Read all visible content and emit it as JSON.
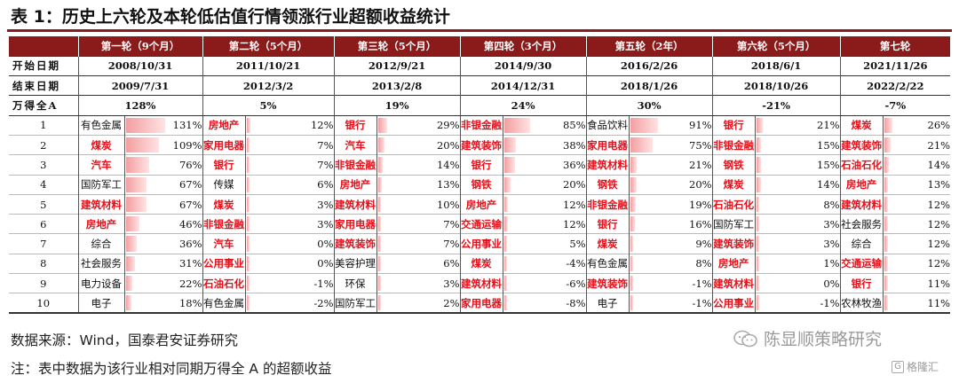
{
  "title": "表 1：历史上六轮及本轮低估值行情领涨行业超额收益统计",
  "columns": [
    "第一轮（9个月）",
    "第二轮（5个月）",
    "第三轮（5个月）",
    "第四轮（3个月）",
    "第五轮（2年）",
    "第六轮（5个月）",
    "第七轮"
  ],
  "start_label": "开始日期",
  "start_dates": [
    "2008/10/31",
    "2011/10/21",
    "2012/9/21",
    "2014/9/30",
    "2016/2/26",
    "2018/6/1",
    "2021/11/26"
  ],
  "end_label": "结束日期",
  "end_dates": [
    "2009/7/31",
    "2012/3/2",
    "2013/2/8",
    "2014/12/31",
    "2018/1/26",
    "2018/10/26",
    "2022/2/22"
  ],
  "wind_label": "万得全A",
  "wind_values": [
    "128%",
    "5%",
    "19%",
    "24%",
    "30%",
    "-21%",
    "-7%"
  ],
  "rows": [
    {
      "rank": "1",
      "cells": [
        {
          "name": "有色金属",
          "value": "131%",
          "pct": 131,
          "hl": false
        },
        {
          "name": "房地产",
          "value": "12%",
          "pct": 12,
          "hl": true
        },
        {
          "name": "银行",
          "value": "29%",
          "pct": 29,
          "hl": true
        },
        {
          "name": "非银金融",
          "value": "85%",
          "pct": 85,
          "hl": true
        },
        {
          "name": "食品饮料",
          "value": "91%",
          "pct": 91,
          "hl": false
        },
        {
          "name": "银行",
          "value": "21%",
          "pct": 21,
          "hl": true
        },
        {
          "name": "煤炭",
          "value": "26%",
          "pct": 26,
          "hl": true
        }
      ]
    },
    {
      "rank": "2",
      "cells": [
        {
          "name": "煤炭",
          "value": "109%",
          "pct": 109,
          "hl": true
        },
        {
          "name": "家用电器",
          "value": "7%",
          "pct": 7,
          "hl": true
        },
        {
          "name": "汽车",
          "value": "20%",
          "pct": 20,
          "hl": true
        },
        {
          "name": "建筑装饰",
          "value": "38%",
          "pct": 38,
          "hl": true
        },
        {
          "name": "家用电器",
          "value": "75%",
          "pct": 75,
          "hl": true
        },
        {
          "name": "非银金融",
          "value": "15%",
          "pct": 15,
          "hl": true
        },
        {
          "name": "建筑装饰",
          "value": "21%",
          "pct": 21,
          "hl": true
        }
      ]
    },
    {
      "rank": "3",
      "cells": [
        {
          "name": "汽车",
          "value": "76%",
          "pct": 76,
          "hl": true
        },
        {
          "name": "银行",
          "value": "7%",
          "pct": 7,
          "hl": true
        },
        {
          "name": "非银金融",
          "value": "14%",
          "pct": 14,
          "hl": true
        },
        {
          "name": "银行",
          "value": "36%",
          "pct": 36,
          "hl": true
        },
        {
          "name": "建筑材料",
          "value": "21%",
          "pct": 21,
          "hl": true
        },
        {
          "name": "钢铁",
          "value": "15%",
          "pct": 15,
          "hl": true
        },
        {
          "name": "石油石化",
          "value": "14%",
          "pct": 14,
          "hl": true
        }
      ]
    },
    {
      "rank": "4",
      "cells": [
        {
          "name": "国防军工",
          "value": "67%",
          "pct": 67,
          "hl": false
        },
        {
          "name": "传媒",
          "value": "6%",
          "pct": 6,
          "hl": false
        },
        {
          "name": "房地产",
          "value": "13%",
          "pct": 13,
          "hl": true
        },
        {
          "name": "钢铁",
          "value": "20%",
          "pct": 20,
          "hl": true
        },
        {
          "name": "钢铁",
          "value": "20%",
          "pct": 20,
          "hl": true
        },
        {
          "name": "煤炭",
          "value": "14%",
          "pct": 14,
          "hl": true
        },
        {
          "name": "房地产",
          "value": "13%",
          "pct": 13,
          "hl": true
        }
      ]
    },
    {
      "rank": "5",
      "cells": [
        {
          "name": "建筑材料",
          "value": "67%",
          "pct": 67,
          "hl": true
        },
        {
          "name": "煤炭",
          "value": "3%",
          "pct": 3,
          "hl": true
        },
        {
          "name": "建筑材料",
          "value": "10%",
          "pct": 10,
          "hl": true
        },
        {
          "name": "房地产",
          "value": "12%",
          "pct": 12,
          "hl": true
        },
        {
          "name": "非银金融",
          "value": "19%",
          "pct": 19,
          "hl": true
        },
        {
          "name": "石油石化",
          "value": "8%",
          "pct": 8,
          "hl": true
        },
        {
          "name": "建筑材料",
          "value": "12%",
          "pct": 12,
          "hl": true
        }
      ]
    },
    {
      "rank": "6",
      "cells": [
        {
          "name": "房地产",
          "value": "46%",
          "pct": 46,
          "hl": true
        },
        {
          "name": "非银金融",
          "value": "3%",
          "pct": 3,
          "hl": true
        },
        {
          "name": "家用电器",
          "value": "7%",
          "pct": 7,
          "hl": true
        },
        {
          "name": "交通运输",
          "value": "12%",
          "pct": 12,
          "hl": true
        },
        {
          "name": "银行",
          "value": "16%",
          "pct": 16,
          "hl": true
        },
        {
          "name": "国防军工",
          "value": "3%",
          "pct": 3,
          "hl": false
        },
        {
          "name": "社会服务",
          "value": "12%",
          "pct": 12,
          "hl": false
        }
      ]
    },
    {
      "rank": "7",
      "cells": [
        {
          "name": "综合",
          "value": "36%",
          "pct": 36,
          "hl": false
        },
        {
          "name": "汽车",
          "value": "0%",
          "pct": 0,
          "hl": true
        },
        {
          "name": "建筑装饰",
          "value": "7%",
          "pct": 7,
          "hl": true
        },
        {
          "name": "公用事业",
          "value": "5%",
          "pct": 5,
          "hl": true
        },
        {
          "name": "煤炭",
          "value": "9%",
          "pct": 9,
          "hl": true
        },
        {
          "name": "建筑装饰",
          "value": "3%",
          "pct": 3,
          "hl": true
        },
        {
          "name": "综合",
          "value": "12%",
          "pct": 12,
          "hl": false
        }
      ]
    },
    {
      "rank": "8",
      "cells": [
        {
          "name": "社会服务",
          "value": "31%",
          "pct": 31,
          "hl": false
        },
        {
          "name": "公用事业",
          "value": "0%",
          "pct": 0,
          "hl": true
        },
        {
          "name": "美容护理",
          "value": "6%",
          "pct": 6,
          "hl": false
        },
        {
          "name": "煤炭",
          "value": "-4%",
          "pct": 0,
          "hl": true
        },
        {
          "name": "有色金属",
          "value": "8%",
          "pct": 8,
          "hl": false
        },
        {
          "name": "房地产",
          "value": "1%",
          "pct": 1,
          "hl": true
        },
        {
          "name": "交通运输",
          "value": "12%",
          "pct": 12,
          "hl": true
        }
      ]
    },
    {
      "rank": "9",
      "cells": [
        {
          "name": "电力设备",
          "value": "22%",
          "pct": 22,
          "hl": false
        },
        {
          "name": "石油石化",
          "value": "-1%",
          "pct": 0,
          "hl": true
        },
        {
          "name": "环保",
          "value": "3%",
          "pct": 3,
          "hl": false
        },
        {
          "name": "建筑材料",
          "value": "-6%",
          "pct": 0,
          "hl": true
        },
        {
          "name": "建筑装饰",
          "value": "-1%",
          "pct": 0,
          "hl": true
        },
        {
          "name": "建筑材料",
          "value": "0%",
          "pct": 0,
          "hl": true
        },
        {
          "name": "银行",
          "value": "11%",
          "pct": 11,
          "hl": true
        }
      ]
    },
    {
      "rank": "10",
      "cells": [
        {
          "name": "电子",
          "value": "18%",
          "pct": 18,
          "hl": false
        },
        {
          "name": "有色金属",
          "value": "-2%",
          "pct": 0,
          "hl": false
        },
        {
          "name": "国防军工",
          "value": "2%",
          "pct": 2,
          "hl": false
        },
        {
          "name": "家用电器",
          "value": "-8%",
          "pct": 0,
          "hl": true
        },
        {
          "name": "电子",
          "value": "-1%",
          "pct": 0,
          "hl": false
        },
        {
          "name": "公用事业",
          "value": "-1%",
          "pct": 0,
          "hl": true
        },
        {
          "name": "农林牧渔",
          "value": "11%",
          "pct": 11,
          "hl": false
        }
      ]
    }
  ],
  "source": "数据来源：Wind，国泰君安证券研究",
  "note": "注：表中数据为该行业相对同期万得全 A 的超额收益",
  "watermark": "陈显顺策略研究",
  "logo_text": "格隆汇",
  "logo_glyph": "G",
  "accent_color": "#8b1a1a",
  "highlight_color": "#e8101a",
  "bar_color": "#f39ea0"
}
